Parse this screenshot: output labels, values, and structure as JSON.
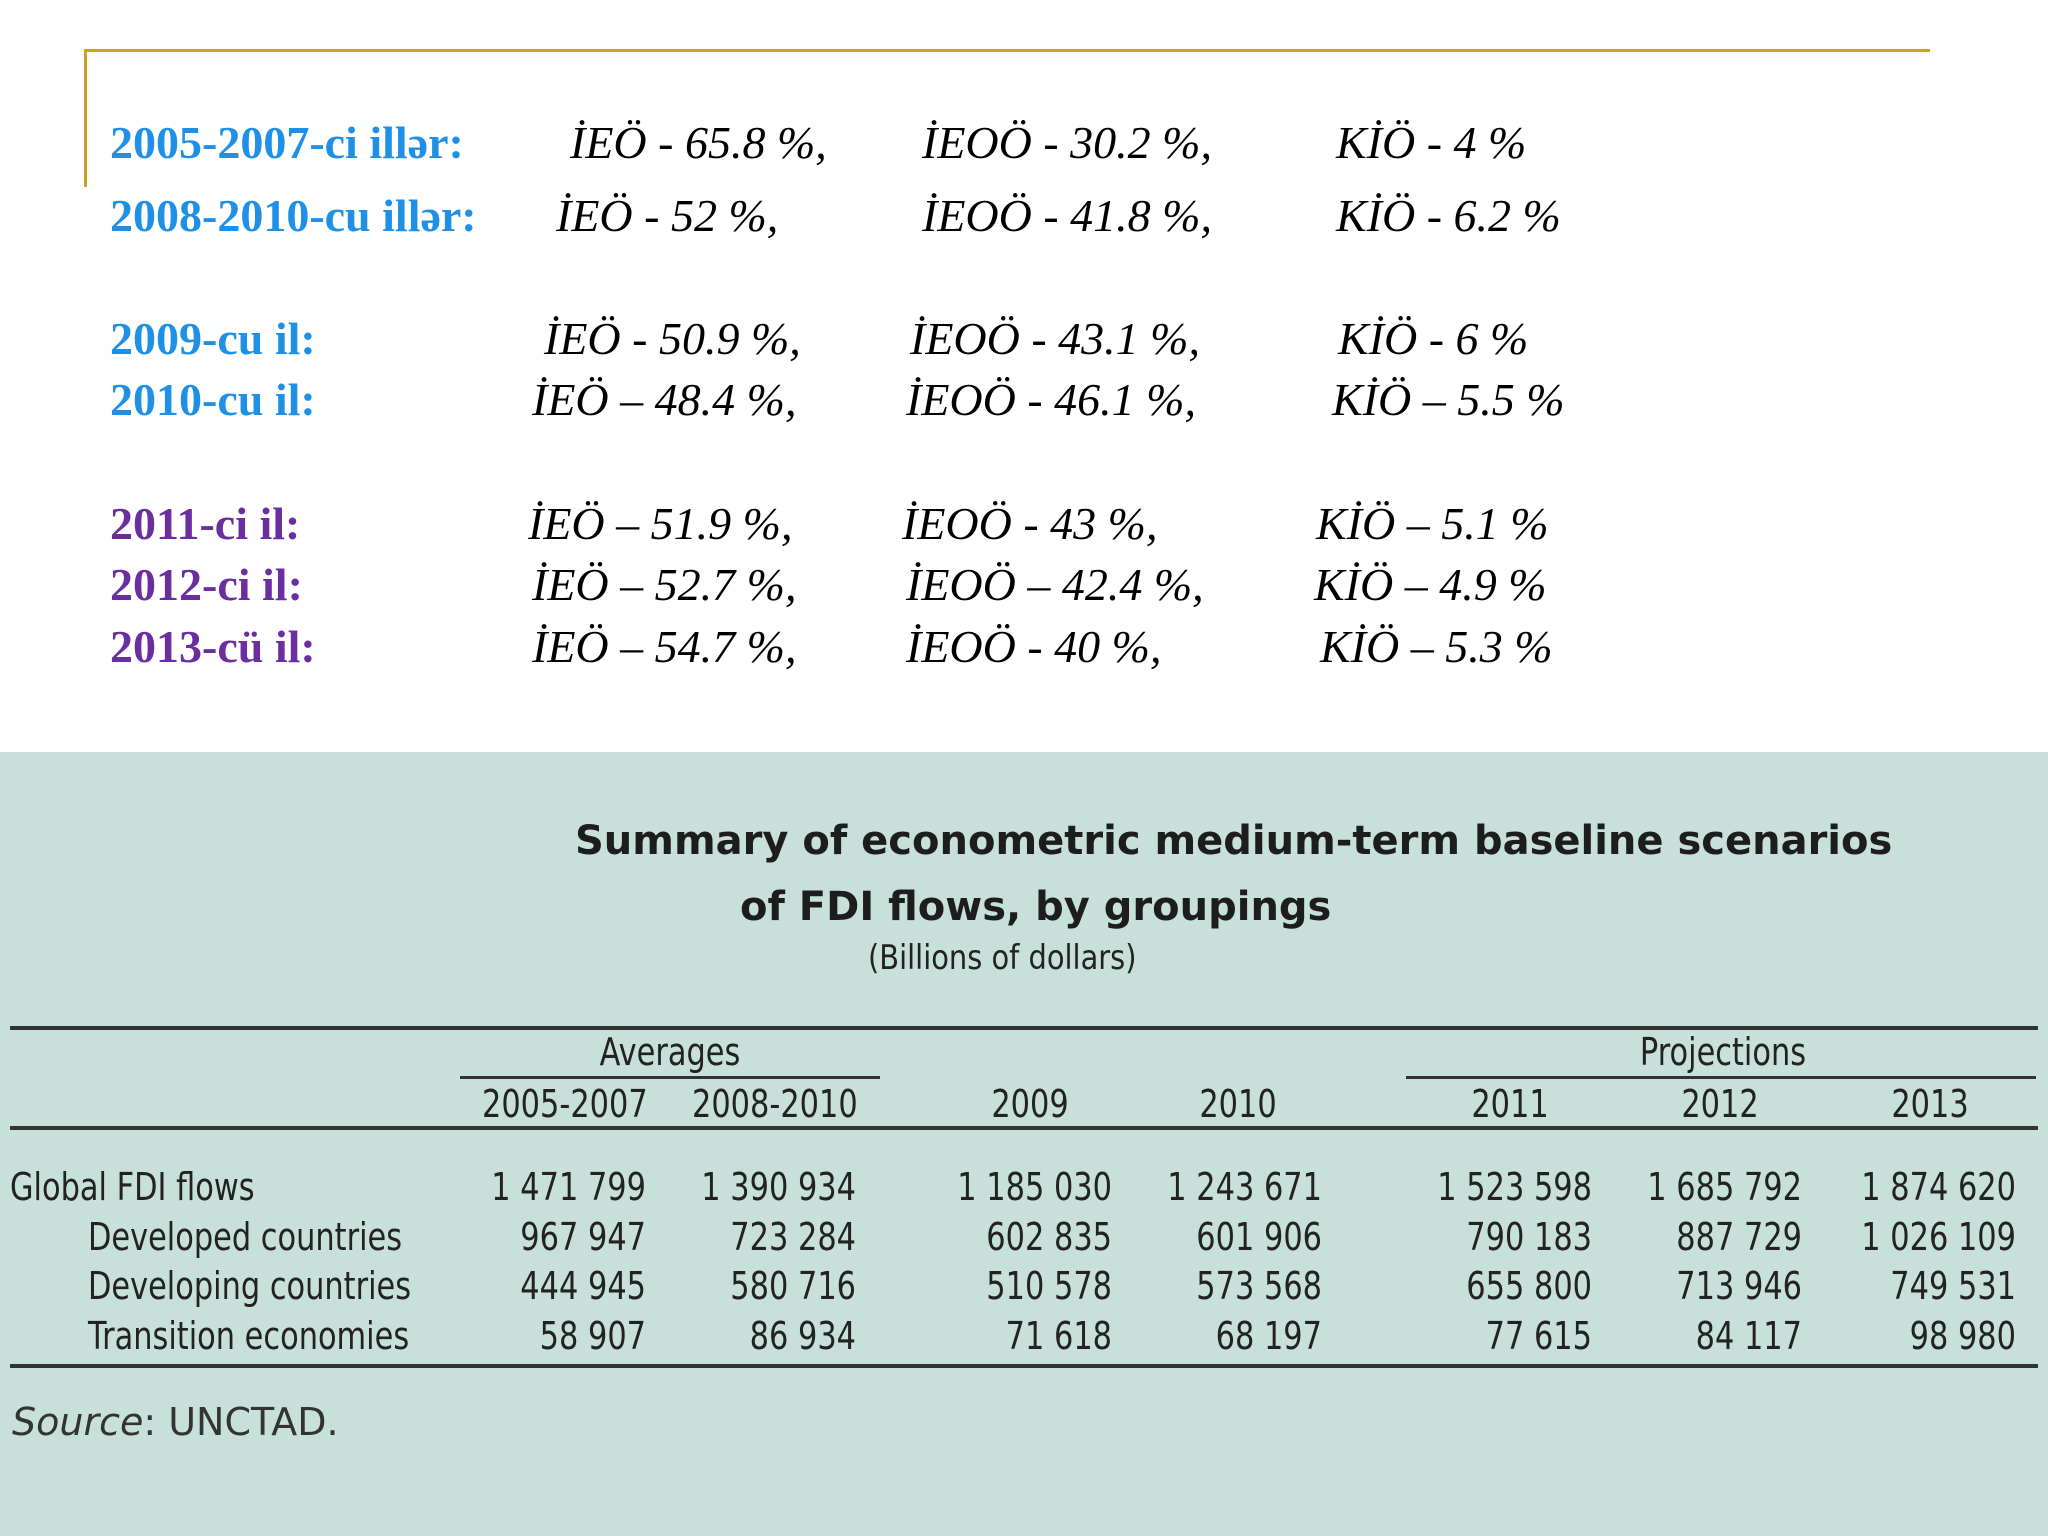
{
  "summary": [
    {
      "label": "2005-2007-ci illər:",
      "color": "#1e90e6",
      "ieo": "İEÖ - 65.8 %,",
      "ieoo": "İEOÖ - 30.2 %,",
      "kio": "KİÖ - 4 %"
    },
    {
      "label": "2008-2010-cu illər:",
      "color": "#1e90e6",
      "ieo": "İEÖ - 52 %,",
      "ieoo": "İEOÖ - 41.8 %,",
      "kio": "KİÖ - 6.2 %"
    },
    {
      "label": "2009-cu il:",
      "color": "#1e90e6",
      "ieo": "İEÖ - 50.9 %,",
      "ieoo": "İEOÖ - 43.1 %,",
      "kio": "KİÖ - 6 %"
    },
    {
      "label": "2010-cu il:",
      "color": "#1e90e6",
      "ieo": "İEÖ – 48.4 %,",
      "ieoo": "İEOÖ - 46.1 %,",
      "kio": "KİÖ – 5.5 %"
    },
    {
      "label": "2011-ci il:",
      "color": "#6b2ea0",
      "ieo": "İEÖ – 51.9 %,",
      "ieoo": "İEOÖ - 43 %,",
      "kio": "KİÖ – 5.1 %"
    },
    {
      "label": "2012-ci il:",
      "color": "#6b2ea0",
      "ieo": "İEÖ – 52.7 %,",
      "ieoo": "İEOÖ – 42.4 %,",
      "kio": "KİÖ – 4.9 %"
    },
    {
      "label": "2013-cü il:",
      "color": "#6b2ea0",
      "ieo": "İEÖ – 54.7 %,",
      "ieoo": "İEOÖ - 40 %,",
      "kio": "KİÖ – 5.3 %"
    }
  ],
  "table": {
    "title_line1": "Summary of econometric medium-term baseline scenarios",
    "title_line2": "of FDI flows, by groupings",
    "subtitle": "(Billions of dollars)",
    "group_averages": "Averages",
    "group_projections": "Projections",
    "columns": [
      "2005-2007",
      "2008-2010",
      "2009",
      "2010",
      "2011",
      "2012",
      "2013"
    ],
    "rows": [
      {
        "label": "Global FDI flows",
        "values": [
          "1 471 799",
          "1 390 934",
          "1 185 030",
          "1 243 671",
          "1 523 598",
          "1 685 792",
          "1 874 620"
        ]
      },
      {
        "label": "Developed countries",
        "values": [
          "967 947",
          "723 284",
          "602 835",
          "601 906",
          "790 183",
          "887 729",
          "1 026 109"
        ]
      },
      {
        "label": "Developing countries",
        "values": [
          "444 945",
          "580 716",
          "510 578",
          "573 568",
          "655 800",
          "713 946",
          "749 531"
        ]
      },
      {
        "label": "Transition economies",
        "values": [
          "58 907",
          "86 934",
          "71 618",
          "68 197",
          "77 615",
          "84 117",
          "98 980"
        ]
      }
    ],
    "source_label": "Source",
    "source_text": ": UNCTAD."
  }
}
